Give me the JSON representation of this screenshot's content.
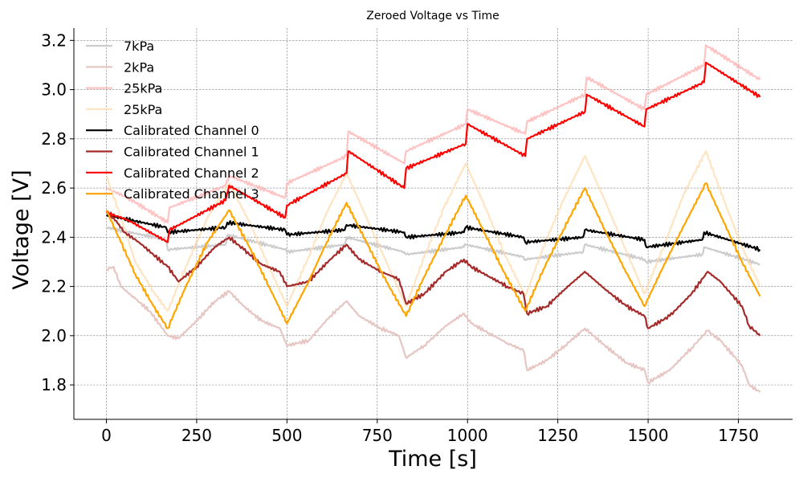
{
  "chart_data": {
    "type": "line",
    "title": "Zeroed Voltage vs Time",
    "xlabel": "Time [s]",
    "ylabel": "Voltage [V]",
    "xlim": [
      -90,
      1900
    ],
    "ylim": [
      1.66,
      3.25
    ],
    "xticks": [
      0,
      250,
      500,
      750,
      1000,
      1250,
      1500,
      1750
    ],
    "yticks": [
      1.8,
      2.0,
      2.2,
      2.4,
      2.6,
      2.8,
      3.0,
      3.2
    ],
    "xtick_labels": [
      "0",
      "250",
      "500",
      "750",
      "1000",
      "1250",
      "1500",
      "1750"
    ],
    "ytick_labels": [
      "1.8",
      "2.0",
      "2.2",
      "2.4",
      "2.6",
      "2.8",
      "3.0",
      "3.2"
    ],
    "grid": true,
    "legend_position": "upper-left",
    "series": [
      {
        "name": "7kPa",
        "color": "#cccccc",
        "opacity": 1,
        "x": [
          0,
          165,
          170,
          330,
          335,
          495,
          500,
          660,
          665,
          825,
          830,
          990,
          995,
          1155,
          1160,
          1320,
          1325,
          1490,
          1495,
          1650,
          1655,
          1810
        ],
        "y": [
          2.44,
          2.39,
          2.35,
          2.37,
          2.41,
          2.35,
          2.34,
          2.37,
          2.4,
          2.34,
          2.33,
          2.36,
          2.37,
          2.32,
          2.31,
          2.34,
          2.37,
          2.31,
          2.3,
          2.33,
          2.36,
          2.29
        ]
      },
      {
        "name": "2kPa",
        "color": "#e6c6c3",
        "opacity": 1,
        "x": [
          0,
          20,
          40,
          80,
          120,
          170,
          200,
          250,
          300,
          340,
          380,
          430,
          480,
          500,
          560,
          620,
          665,
          700,
          760,
          810,
          830,
          880,
          940,
          990,
          1010,
          1060,
          1110,
          1155,
          1165,
          1220,
          1270,
          1325,
          1380,
          1440,
          1490,
          1500,
          1560,
          1620,
          1665,
          1700,
          1760,
          1780,
          1810
        ],
        "y": [
          2.27,
          2.28,
          2.2,
          2.15,
          2.1,
          2.0,
          1.99,
          2.06,
          2.14,
          2.18,
          2.12,
          2.06,
          2.03,
          1.96,
          1.98,
          2.08,
          2.14,
          2.08,
          2.03,
          2.0,
          1.91,
          1.96,
          2.04,
          2.09,
          2.05,
          2.01,
          1.97,
          1.94,
          1.86,
          1.9,
          1.96,
          2.03,
          1.96,
          1.89,
          1.86,
          1.81,
          1.86,
          1.95,
          2.02,
          1.98,
          1.88,
          1.8,
          1.77
        ]
      },
      {
        "name": "25kPa",
        "color": "#ffb3b3",
        "opacity": 0.8,
        "x": [
          0,
          60,
          170,
          175,
          330,
          340,
          495,
          500,
          665,
          670,
          825,
          830,
          995,
          1000,
          1160,
          1165,
          1325,
          1330,
          1490,
          1495,
          1655,
          1660,
          1810
        ],
        "y": [
          2.6,
          2.56,
          2.46,
          2.52,
          2.61,
          2.65,
          2.56,
          2.62,
          2.73,
          2.83,
          2.7,
          2.75,
          2.86,
          2.92,
          2.82,
          2.87,
          2.98,
          3.05,
          2.92,
          2.98,
          3.1,
          3.18,
          3.04
        ]
      },
      {
        "name": "25kPa",
        "color": "#ffd9a8",
        "opacity": 0.7,
        "x": [
          0,
          40,
          80,
          130,
          170,
          220,
          280,
          340,
          400,
          450,
          500,
          560,
          610,
          665,
          720,
          775,
          830,
          880,
          935,
          995,
          1050,
          1100,
          1160,
          1210,
          1265,
          1325,
          1380,
          1435,
          1490,
          1545,
          1600,
          1660,
          1710,
          1760,
          1810
        ],
        "y": [
          2.65,
          2.48,
          2.3,
          2.18,
          2.1,
          2.28,
          2.48,
          2.62,
          2.45,
          2.28,
          2.12,
          2.32,
          2.5,
          2.66,
          2.48,
          2.3,
          2.12,
          2.32,
          2.52,
          2.7,
          2.52,
          2.34,
          2.16,
          2.36,
          2.55,
          2.73,
          2.55,
          2.36,
          2.17,
          2.37,
          2.58,
          2.75,
          2.55,
          2.36,
          2.2
        ]
      },
      {
        "name": "Calibrated Channel 0",
        "color": "#000000",
        "opacity": 1,
        "x": [
          0,
          165,
          170,
          330,
          335,
          495,
          500,
          660,
          665,
          825,
          830,
          990,
          995,
          1155,
          1160,
          1320,
          1325,
          1490,
          1495,
          1650,
          1655,
          1810
        ],
        "y": [
          2.49,
          2.44,
          2.42,
          2.44,
          2.46,
          2.43,
          2.41,
          2.43,
          2.45,
          2.42,
          2.4,
          2.42,
          2.44,
          2.4,
          2.38,
          2.4,
          2.43,
          2.39,
          2.36,
          2.39,
          2.42,
          2.35
        ]
      },
      {
        "name": "Calibrated Channel 1",
        "color": "#a52a2a",
        "opacity": 1,
        "x": [
          0,
          20,
          50,
          90,
          130,
          170,
          200,
          250,
          300,
          340,
          380,
          430,
          480,
          500,
          560,
          620,
          665,
          700,
          760,
          810,
          830,
          880,
          940,
          990,
          1010,
          1060,
          1110,
          1155,
          1165,
          1220,
          1270,
          1325,
          1380,
          1440,
          1490,
          1500,
          1560,
          1620,
          1665,
          1700,
          1760,
          1780,
          1810
        ],
        "y": [
          2.5,
          2.48,
          2.42,
          2.38,
          2.33,
          2.28,
          2.22,
          2.28,
          2.36,
          2.4,
          2.35,
          2.29,
          2.26,
          2.2,
          2.22,
          2.31,
          2.37,
          2.31,
          2.26,
          2.23,
          2.13,
          2.17,
          2.26,
          2.31,
          2.28,
          2.24,
          2.2,
          2.17,
          2.09,
          2.12,
          2.19,
          2.26,
          2.19,
          2.12,
          2.08,
          2.03,
          2.08,
          2.17,
          2.26,
          2.22,
          2.12,
          2.04,
          2.0
        ]
      },
      {
        "name": "Calibrated Channel 2",
        "color": "#ff0000",
        "opacity": 1,
        "x": [
          0,
          60,
          170,
          175,
          330,
          340,
          495,
          500,
          665,
          670,
          825,
          830,
          995,
          1000,
          1160,
          1165,
          1325,
          1330,
          1490,
          1495,
          1655,
          1660,
          1810
        ],
        "y": [
          2.5,
          2.47,
          2.38,
          2.43,
          2.55,
          2.61,
          2.48,
          2.53,
          2.66,
          2.75,
          2.6,
          2.68,
          2.78,
          2.86,
          2.73,
          2.8,
          2.91,
          2.98,
          2.85,
          2.92,
          3.03,
          3.11,
          2.97
        ]
      },
      {
        "name": "Calibrated Channel 3",
        "color": "#ffa500",
        "opacity": 1,
        "x": [
          0,
          40,
          80,
          130,
          170,
          220,
          280,
          340,
          400,
          450,
          500,
          560,
          610,
          665,
          720,
          775,
          830,
          880,
          935,
          995,
          1050,
          1100,
          1160,
          1210,
          1265,
          1325,
          1380,
          1435,
          1490,
          1545,
          1600,
          1660,
          1710,
          1760,
          1810
        ],
        "y": [
          2.51,
          2.38,
          2.25,
          2.12,
          2.03,
          2.2,
          2.38,
          2.51,
          2.35,
          2.2,
          2.05,
          2.22,
          2.38,
          2.54,
          2.38,
          2.22,
          2.08,
          2.24,
          2.4,
          2.57,
          2.41,
          2.26,
          2.1,
          2.27,
          2.43,
          2.6,
          2.43,
          2.27,
          2.12,
          2.29,
          2.45,
          2.62,
          2.46,
          2.3,
          2.16
        ]
      }
    ]
  }
}
